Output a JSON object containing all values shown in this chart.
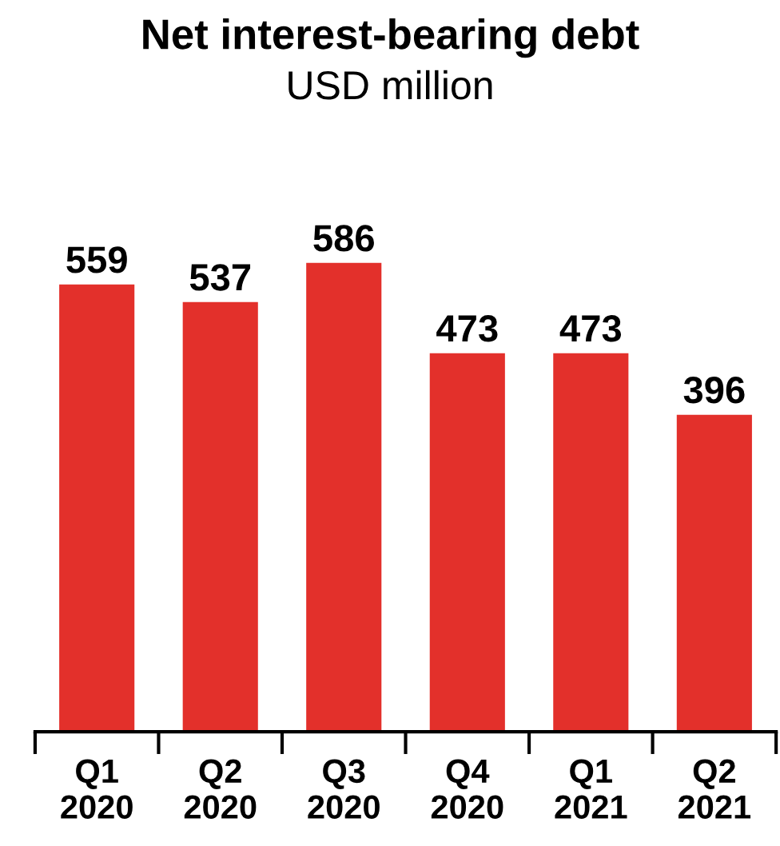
{
  "chart_data": {
    "type": "bar",
    "title": "Net interest-bearing debt",
    "subtitle": "USD million",
    "categories": [
      "Q1\n2020",
      "Q2\n2020",
      "Q3\n2020",
      "Q4\n2020",
      "Q1\n2021",
      "Q2\n2021"
    ],
    "values": [
      559,
      537,
      586,
      473,
      473,
      396
    ],
    "color": "#e3302b",
    "data_labels": true,
    "grid": false,
    "legend": false
  }
}
